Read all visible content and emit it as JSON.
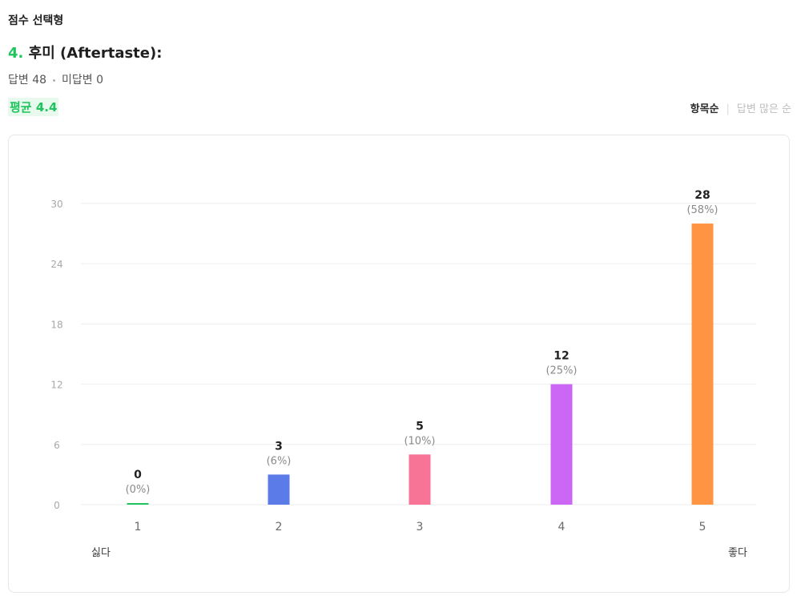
{
  "question": {
    "type_label": "점수 선택형",
    "number": "4.",
    "title": "후미 (Aftertaste):",
    "answered_label": "답변 48",
    "unanswered_label": "미답변 0",
    "average_label": "평균 4.4"
  },
  "sort": {
    "active": "항목순",
    "inactive": "답변 많은 순"
  },
  "colors": {
    "accent": "#1fc55c",
    "grid": "#ededed",
    "tick": "#9e9e9e"
  },
  "chart_data": {
    "type": "bar",
    "categories": [
      "1",
      "2",
      "3",
      "4",
      "5"
    ],
    "values": [
      0,
      3,
      5,
      12,
      28
    ],
    "percent_labels": [
      "(0%)",
      "(6%)",
      "(10%)",
      "(25%)",
      "(58%)"
    ],
    "colors": [
      "#1fc55c",
      "#5b7be8",
      "#f87496",
      "#cc66f5",
      "#ff9442"
    ],
    "yticks": [
      0,
      6,
      12,
      18,
      24,
      30
    ],
    "ylim": [
      0,
      30
    ],
    "grid": true,
    "scale_min_label": "싫다",
    "scale_max_label": "좋다"
  }
}
